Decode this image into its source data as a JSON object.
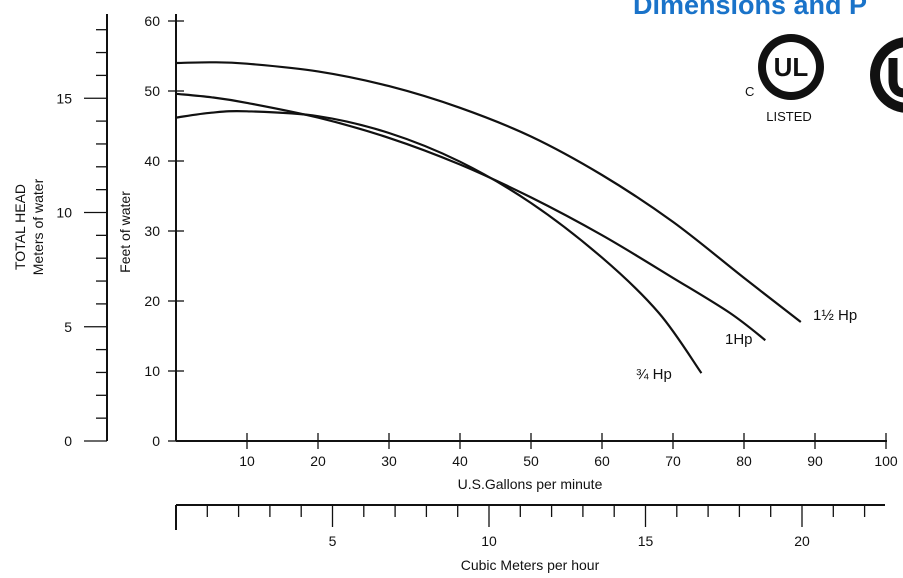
{
  "heading": "Dimensions and P",
  "certification": {
    "ul_mark": "UL",
    "ul_c": "C",
    "ul_listed": "LISTED"
  },
  "chart_data": {
    "type": "line",
    "title": "",
    "left_axis": {
      "label_line1": "TOTAL HEAD",
      "label_line2": "Meters of water",
      "ticks": [
        0,
        5,
        10,
        15
      ],
      "ylim": [
        0,
        18
      ]
    },
    "ylabel": "Feet of water",
    "ylim": [
      0,
      60
    ],
    "yticks": [
      0,
      10,
      20,
      30,
      40,
      50,
      60
    ],
    "xlabel": "U.S.Gallons per minute",
    "xlim": [
      0,
      100
    ],
    "xticks": [
      10,
      20,
      30,
      40,
      50,
      60,
      70,
      80,
      90,
      100
    ],
    "x2label": "Cubic Meters per hour",
    "x2lim": [
      0,
      22.7
    ],
    "x2ticks": [
      5,
      10,
      15,
      20
    ],
    "series": [
      {
        "name": "1½ Hp",
        "color": "#111111",
        "points": [
          [
            0,
            54
          ],
          [
            5,
            54.1
          ],
          [
            10,
            53.9
          ],
          [
            20,
            52.8
          ],
          [
            30,
            50.7
          ],
          [
            40,
            47.6
          ],
          [
            50,
            43.5
          ],
          [
            60,
            38
          ],
          [
            70,
            31.3
          ],
          [
            80,
            23.3
          ],
          [
            88,
            17
          ]
        ]
      },
      {
        "name": "1Hp",
        "color": "#111111",
        "points": [
          [
            0,
            49.6
          ],
          [
            5,
            49.1
          ],
          [
            10,
            48.3
          ],
          [
            20,
            46.2
          ],
          [
            30,
            43.3
          ],
          [
            40,
            39.5
          ],
          [
            50,
            34.8
          ],
          [
            60,
            29.4
          ],
          [
            70,
            23.3
          ],
          [
            78,
            18.3
          ],
          [
            83,
            14.4
          ]
        ]
      },
      {
        "name": "¾ Hp",
        "color": "#111111",
        "points": [
          [
            0,
            46.2
          ],
          [
            5,
            46.9
          ],
          [
            10,
            47.1
          ],
          [
            20,
            46.4
          ],
          [
            30,
            44
          ],
          [
            40,
            39.9
          ],
          [
            50,
            34
          ],
          [
            60,
            26.2
          ],
          [
            68,
            18.3
          ],
          [
            74,
            9.7
          ]
        ]
      }
    ]
  }
}
